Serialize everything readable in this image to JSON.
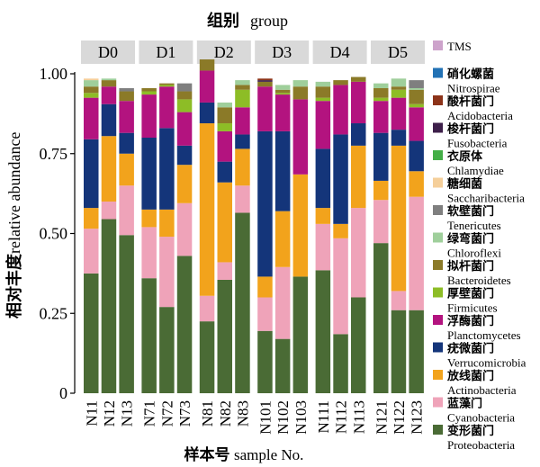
{
  "chart_data": {
    "type": "bar",
    "stacked": true,
    "title": "组别 group",
    "xlabel": "样本号 sample No.",
    "ylabel": "相对丰度 relative abundance",
    "ylim": [
      0,
      1
    ],
    "yticks": [
      "0",
      "0.25",
      "0.50",
      "0.75",
      "1.00"
    ],
    "groups": [
      {
        "name": "D0",
        "samples": [
          "N11",
          "N12",
          "N13"
        ]
      },
      {
        "name": "D1",
        "samples": [
          "N71",
          "N72",
          "N73"
        ]
      },
      {
        "name": "D2",
        "samples": [
          "N81",
          "N82",
          "N83"
        ]
      },
      {
        "name": "D3",
        "samples": [
          "N101",
          "N102",
          "N103"
        ]
      },
      {
        "name": "D4",
        "samples": [
          "N111",
          "N112",
          "N113"
        ]
      },
      {
        "name": "D5",
        "samples": [
          "N121",
          "N122",
          "N123"
        ]
      }
    ],
    "categories": [
      "N11",
      "N12",
      "N13",
      "N71",
      "N72",
      "N73",
      "N81",
      "N82",
      "N83",
      "N101",
      "N102",
      "N103",
      "N111",
      "N112",
      "N113",
      "N121",
      "N122",
      "N123"
    ],
    "series": [
      {
        "name": "变形菌门 Proteobacteria",
        "color": "#4a6b35",
        "values": [
          0.375,
          0.545,
          0.495,
          0.36,
          0.27,
          0.43,
          0.225,
          0.355,
          0.565,
          0.195,
          0.17,
          0.365,
          0.385,
          0.185,
          0.3,
          0.47,
          0.26,
          0.26
        ]
      },
      {
        "name": "蓝藻门 Cyanobacteria",
        "color": "#efa3b9",
        "values": [
          0.14,
          0.055,
          0.155,
          0.16,
          0.22,
          0.165,
          0.08,
          0.055,
          0.085,
          0.105,
          0.225,
          0.0,
          0.145,
          0.3,
          0.28,
          0.135,
          0.06,
          0.355
        ]
      },
      {
        "name": "放线菌门 Actinobacteria",
        "color": "#f2a31c",
        "values": [
          0.065,
          0.205,
          0.1,
          0.055,
          0.085,
          0.12,
          0.54,
          0.25,
          0.115,
          0.065,
          0.175,
          0.32,
          0.05,
          0.045,
          0.195,
          0.06,
          0.455,
          0.08
        ]
      },
      {
        "name": "疣微菌门 Verrucomicrobia",
        "color": "#14357a",
        "values": [
          0.215,
          0.1,
          0.065,
          0.225,
          0.255,
          0.06,
          0.065,
          0.065,
          0.045,
          0.455,
          0.25,
          0.0,
          0.185,
          0.28,
          0.07,
          0.15,
          0.05,
          0.095
        ]
      },
      {
        "name": "浮酶菌门 Planctomycetes",
        "color": "#b3137f",
        "values": [
          0.13,
          0.055,
          0.1,
          0.135,
          0.13,
          0.105,
          0.1,
          0.095,
          0.085,
          0.14,
          0.115,
          0.235,
          0.15,
          0.155,
          0.13,
          0.1,
          0.1,
          0.105
        ]
      },
      {
        "name": "厚壁菌门 Firmicutes",
        "color": "#8dbd26",
        "values": [
          0.015,
          0.0,
          0.0,
          0.01,
          0.005,
          0.04,
          0.0,
          0.025,
          0.055,
          0.0,
          0.005,
          0.0,
          0.01,
          0.0,
          0.0,
          0.01,
          0.025,
          0.01
        ]
      },
      {
        "name": "拟杆菌门 Bacteroidetes",
        "color": "#8b7a28",
        "values": [
          0.02,
          0.02,
          0.03,
          0.01,
          0.005,
          0.025,
          0.035,
          0.05,
          0.015,
          0.015,
          0.01,
          0.04,
          0.035,
          0.015,
          0.015,
          0.03,
          0.01,
          0.045
        ]
      },
      {
        "name": "绿弯菌门 Chloroflexi",
        "color": "#9fcf9b",
        "values": [
          0.02,
          0.005,
          0.0,
          0.0,
          0.0,
          0.0,
          0.0,
          0.015,
          0.015,
          0.0,
          0.015,
          0.02,
          0.015,
          0.0,
          0.0,
          0.015,
          0.025,
          0.005
        ]
      },
      {
        "name": "软壁菌门 Tenericutes",
        "color": "#7f7f7f",
        "values": [
          0.0,
          0.0,
          0.01,
          0.0,
          0.0,
          0.025,
          0.0,
          0.0,
          0.0,
          0.0,
          0.0,
          0.0,
          0.0,
          0.0,
          0.0,
          0.0,
          0.0,
          0.025
        ]
      },
      {
        "name": "糖细菌 Saccharibacteria",
        "color": "#f5cf9a",
        "values": [
          0.005,
          0.0,
          0.0,
          0.0,
          0.0,
          0.0,
          0.0,
          0.0,
          0.0,
          0.0,
          0.0,
          0.0,
          0.0,
          0.0,
          0.0,
          0.0,
          0.0,
          0.0
        ]
      },
      {
        "name": "衣原体 Chlamydiae",
        "color": "#44ae47",
        "values": [
          0.0,
          0.0,
          0.0,
          0.0,
          0.0,
          0.0,
          0.0,
          0.0,
          0.0,
          0.0,
          0.0,
          0.0,
          0.0,
          0.0,
          0.0,
          0.0,
          0.0,
          0.0
        ]
      },
      {
        "name": "梭杆菌门 Fusobacteria",
        "color": "#3d1f4a",
        "values": [
          0.0,
          0.0,
          0.0,
          0.0,
          0.0,
          0.0,
          0.0,
          0.0,
          0.0,
          0.005,
          0.0,
          0.0,
          0.0,
          0.0,
          0.0,
          0.0,
          0.0,
          0.0
        ]
      },
      {
        "name": "酸杆菌门 Acidobacteria",
        "color": "#8c3319",
        "values": [
          0.0,
          0.0,
          0.0,
          0.0,
          0.0,
          0.0,
          0.0,
          0.0,
          0.0,
          0.005,
          0.0,
          0.0,
          0.0,
          0.0,
          0.0,
          0.0,
          0.0,
          0.0
        ]
      },
      {
        "name": "硝化螺菌 Nitrospirae",
        "color": "#2272b5",
        "values": [
          0.0,
          0.0,
          0.0,
          0.0,
          0.0,
          0.0,
          0.0,
          0.0,
          0.0,
          0.0,
          0.0,
          0.0,
          0.0,
          0.0,
          0.0,
          0.0,
          0.0,
          0.0
        ]
      },
      {
        "name": "TMS",
        "color": "#cda3cb",
        "values": [
          0.0,
          0.0,
          0.0,
          0.0,
          0.0,
          0.0,
          0.0,
          0.0,
          0.0,
          0.0,
          0.0,
          0.0,
          0.0,
          0.0,
          0.0,
          0.0,
          0.0,
          0.0
        ]
      }
    ],
    "legend": {
      "placement": "right",
      "entries": [
        {
          "cn": "",
          "en": "TMS",
          "color": "#cda3cb"
        },
        {
          "cn": "硝化螺菌",
          "en": "Nitrospirae",
          "color": "#2272b5"
        },
        {
          "cn": "酸杆菌门",
          "en": "Acidobacteria",
          "color": "#8c3319"
        },
        {
          "cn": "梭杆菌门",
          "en": "Fusobacteria",
          "color": "#3d1f4a"
        },
        {
          "cn": "衣原体",
          "en": "Chlamydiae",
          "color": "#44ae47"
        },
        {
          "cn": "糖细菌",
          "en": "Saccharibacteria",
          "color": "#f5cf9a"
        },
        {
          "cn": "软壁菌门",
          "en": "Tenericutes",
          "color": "#7f7f7f"
        },
        {
          "cn": "绿弯菌门",
          "en": "Chloroflexi",
          "color": "#9fcf9b"
        },
        {
          "cn": "拟杆菌门",
          "en": "Bacteroidetes",
          "color": "#8b7a28"
        },
        {
          "cn": "厚壁菌门",
          "en": "Firmicutes",
          "color": "#8dbd26"
        },
        {
          "cn": "浮酶菌门",
          "en": "Planctomycetes",
          "color": "#b3137f"
        },
        {
          "cn": "疣微菌门",
          "en": "Verrucomicrobia",
          "color": "#14357a"
        },
        {
          "cn": "放线菌门",
          "en": "Actinobacteria",
          "color": "#f2a31c"
        },
        {
          "cn": "蓝藻门",
          "en": "Cyanobacteria",
          "color": "#efa3b9"
        },
        {
          "cn": "变形菌门",
          "en": "Proteobacteria",
          "color": "#4a6b35"
        }
      ]
    }
  },
  "labels": {
    "title_cn": "组别",
    "title_en": "group",
    "xlabel_cn": "样本号",
    "xlabel_en": "sample No.",
    "ylabel_cn": "相对丰度",
    "ylabel_en": "relative abundance"
  },
  "colors": {
    "strip_bg": "#d9d9d9",
    "axis": "#000000"
  }
}
